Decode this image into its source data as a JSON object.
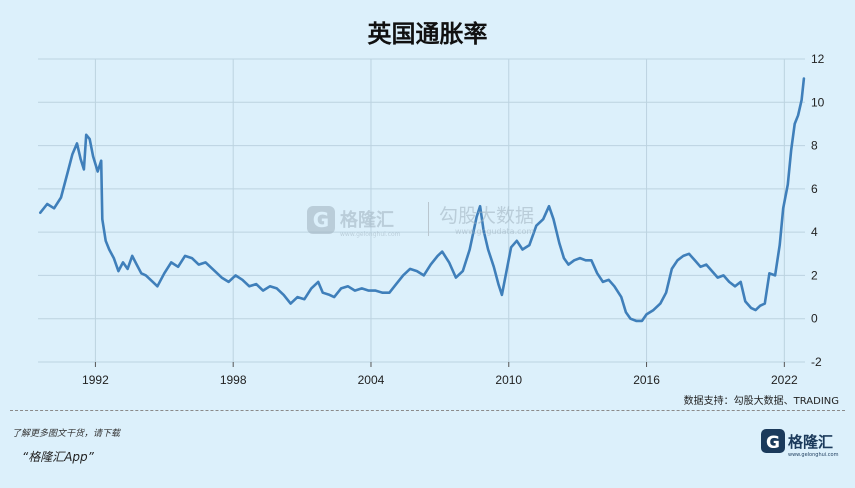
{
  "title": "英国通胀率",
  "source_note": "数据支持：勾股大数据、TRADING",
  "promo_text": "了解更多图文干货，请下载",
  "app_name": "“格隆汇App”",
  "watermark": {
    "left_brand": "格隆汇",
    "left_url": "www.gelonghui.com",
    "right_brand": "勾股大数据",
    "right_url": "www.gogudata.com"
  },
  "brand_logo": {
    "name": "格隆汇",
    "url": "www.gelonghui.com"
  },
  "colors": {
    "background": "#dcf0fb",
    "line": "#3f7fba",
    "grid": "#bcd3e0"
  },
  "chart_data": {
    "type": "line",
    "title": "英国通胀率",
    "xlabel": "",
    "ylabel": "",
    "xlim": [
      1989.5,
      2022.9
    ],
    "ylim": [
      -2,
      12
    ],
    "x_ticks": [
      1992,
      1998,
      2004,
      2010,
      2016,
      2022
    ],
    "y_ticks": [
      -2,
      0,
      2,
      4,
      6,
      8,
      10,
      12
    ],
    "grid": true,
    "y_axis_position": "right",
    "series": [
      {
        "points": [
          [
            1989.6,
            4.9
          ],
          [
            1989.9,
            5.3
          ],
          [
            1990.2,
            5.1
          ],
          [
            1990.5,
            5.6
          ],
          [
            1990.8,
            6.8
          ],
          [
            1991.0,
            7.6
          ],
          [
            1991.2,
            8.1
          ],
          [
            1991.35,
            7.4
          ],
          [
            1991.5,
            6.9
          ],
          [
            1991.6,
            8.5
          ],
          [
            1991.75,
            8.3
          ],
          [
            1991.9,
            7.5
          ],
          [
            1992.1,
            6.8
          ],
          [
            1992.25,
            7.3
          ],
          [
            1992.3,
            4.6
          ],
          [
            1992.45,
            3.6
          ],
          [
            1992.6,
            3.2
          ],
          [
            1992.8,
            2.8
          ],
          [
            1993.0,
            2.2
          ],
          [
            1993.2,
            2.6
          ],
          [
            1993.4,
            2.3
          ],
          [
            1993.6,
            2.9
          ],
          [
            1993.8,
            2.5
          ],
          [
            1994.0,
            2.1
          ],
          [
            1994.2,
            2.0
          ],
          [
            1994.5,
            1.7
          ],
          [
            1994.7,
            1.5
          ],
          [
            1995.0,
            2.1
          ],
          [
            1995.3,
            2.6
          ],
          [
            1995.6,
            2.4
          ],
          [
            1995.9,
            2.9
          ],
          [
            1996.2,
            2.8
          ],
          [
            1996.5,
            2.5
          ],
          [
            1996.8,
            2.6
          ],
          [
            1997.2,
            2.2
          ],
          [
            1997.5,
            1.9
          ],
          [
            1997.8,
            1.7
          ],
          [
            1998.1,
            2.0
          ],
          [
            1998.4,
            1.8
          ],
          [
            1998.7,
            1.5
          ],
          [
            1999.0,
            1.6
          ],
          [
            1999.3,
            1.3
          ],
          [
            1999.6,
            1.5
          ],
          [
            1999.9,
            1.4
          ],
          [
            2000.2,
            1.1
          ],
          [
            2000.5,
            0.7
          ],
          [
            2000.8,
            1.0
          ],
          [
            2001.1,
            0.9
          ],
          [
            2001.4,
            1.4
          ],
          [
            2001.7,
            1.7
          ],
          [
            2001.9,
            1.2
          ],
          [
            2002.2,
            1.1
          ],
          [
            2002.4,
            1.0
          ],
          [
            2002.7,
            1.4
          ],
          [
            2003.0,
            1.5
          ],
          [
            2003.3,
            1.3
          ],
          [
            2003.6,
            1.4
          ],
          [
            2003.9,
            1.3
          ],
          [
            2004.2,
            1.3
          ],
          [
            2004.5,
            1.2
          ],
          [
            2004.8,
            1.2
          ],
          [
            2005.1,
            1.6
          ],
          [
            2005.4,
            2.0
          ],
          [
            2005.7,
            2.3
          ],
          [
            2006.0,
            2.2
          ],
          [
            2006.3,
            2.0
          ],
          [
            2006.6,
            2.5
          ],
          [
            2006.9,
            2.9
          ],
          [
            2007.1,
            3.1
          ],
          [
            2007.4,
            2.6
          ],
          [
            2007.7,
            1.9
          ],
          [
            2008.0,
            2.2
          ],
          [
            2008.3,
            3.2
          ],
          [
            2008.6,
            4.7
          ],
          [
            2008.75,
            5.2
          ],
          [
            2008.9,
            4.1
          ],
          [
            2009.1,
            3.2
          ],
          [
            2009.35,
            2.4
          ],
          [
            2009.55,
            1.6
          ],
          [
            2009.7,
            1.1
          ],
          [
            2009.9,
            2.2
          ],
          [
            2010.1,
            3.3
          ],
          [
            2010.35,
            3.6
          ],
          [
            2010.6,
            3.2
          ],
          [
            2010.9,
            3.4
          ],
          [
            2011.2,
            4.3
          ],
          [
            2011.5,
            4.6
          ],
          [
            2011.75,
            5.2
          ],
          [
            2011.95,
            4.6
          ],
          [
            2012.2,
            3.5
          ],
          [
            2012.4,
            2.8
          ],
          [
            2012.6,
            2.5
          ],
          [
            2012.85,
            2.7
          ],
          [
            2013.1,
            2.8
          ],
          [
            2013.35,
            2.7
          ],
          [
            2013.6,
            2.7
          ],
          [
            2013.85,
            2.1
          ],
          [
            2014.1,
            1.7
          ],
          [
            2014.35,
            1.8
          ],
          [
            2014.6,
            1.5
          ],
          [
            2014.9,
            1.0
          ],
          [
            2015.1,
            0.3
          ],
          [
            2015.3,
            0.0
          ],
          [
            2015.55,
            -0.1
          ],
          [
            2015.8,
            -0.1
          ],
          [
            2016.0,
            0.2
          ],
          [
            2016.3,
            0.4
          ],
          [
            2016.6,
            0.7
          ],
          [
            2016.85,
            1.2
          ],
          [
            2017.1,
            2.3
          ],
          [
            2017.35,
            2.7
          ],
          [
            2017.6,
            2.9
          ],
          [
            2017.85,
            3.0
          ],
          [
            2018.1,
            2.7
          ],
          [
            2018.35,
            2.4
          ],
          [
            2018.6,
            2.5
          ],
          [
            2018.85,
            2.2
          ],
          [
            2019.1,
            1.9
          ],
          [
            2019.35,
            2.0
          ],
          [
            2019.6,
            1.7
          ],
          [
            2019.85,
            1.5
          ],
          [
            2020.1,
            1.7
          ],
          [
            2020.3,
            0.8
          ],
          [
            2020.55,
            0.5
          ],
          [
            2020.75,
            0.4
          ],
          [
            2020.95,
            0.6
          ],
          [
            2021.15,
            0.7
          ],
          [
            2021.35,
            2.1
          ],
          [
            2021.6,
            2.0
          ],
          [
            2021.8,
            3.4
          ],
          [
            2021.95,
            5.1
          ],
          [
            2022.15,
            6.2
          ],
          [
            2022.3,
            7.8
          ],
          [
            2022.45,
            9.0
          ],
          [
            2022.6,
            9.4
          ],
          [
            2022.75,
            10.1
          ],
          [
            2022.85,
            11.1
          ]
        ]
      }
    ]
  }
}
